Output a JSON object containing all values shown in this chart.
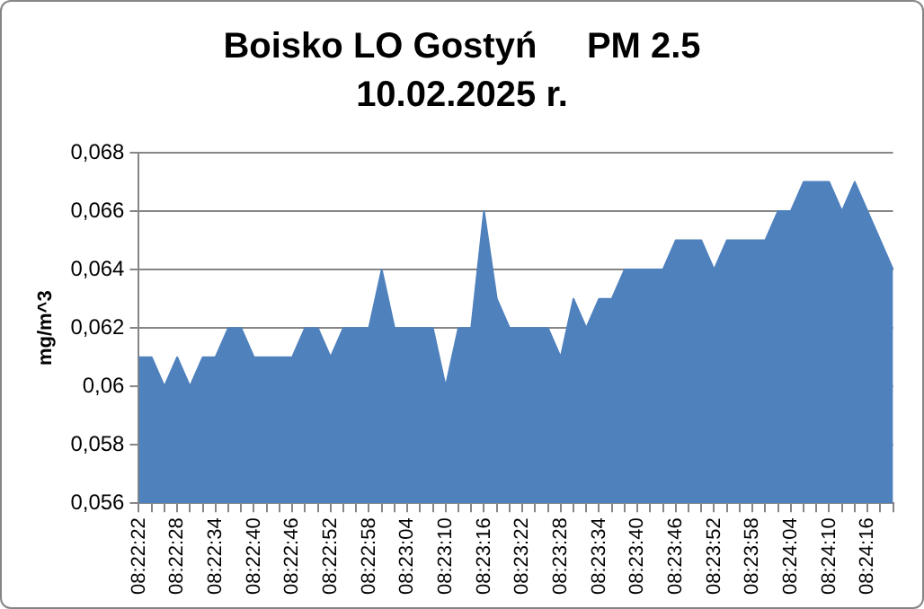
{
  "chart_data": {
    "type": "area",
    "title": "Boisko LO Gostyń     PM 2.5",
    "subtitle": "10.02.2025 r.",
    "ylabel": "mg/m^3",
    "categories": [
      "08:22:22",
      null,
      null,
      "08:22:28",
      null,
      null,
      "08:22:34",
      null,
      null,
      "08:22:40",
      null,
      null,
      "08:22:46",
      null,
      null,
      "08:22:52",
      null,
      null,
      "08:22:58",
      null,
      null,
      "08:23:04",
      null,
      null,
      "08:23:10",
      null,
      null,
      "08:23:16",
      null,
      null,
      "08:23:22",
      null,
      null,
      "08:23:28",
      null,
      null,
      "08:23:34",
      null,
      null,
      "08:23:40",
      null,
      null,
      "08:23:46",
      null,
      null,
      "08:23:52",
      null,
      null,
      "08:23:58",
      null,
      null,
      "08:24:04",
      null,
      null,
      "08:24:10",
      null,
      null,
      "08:24:16",
      null,
      null
    ],
    "values": [
      0.061,
      0.061,
      0.06,
      0.061,
      0.06,
      0.061,
      0.061,
      0.062,
      0.062,
      0.061,
      0.061,
      0.061,
      0.061,
      0.062,
      0.062,
      0.061,
      0.062,
      0.062,
      0.062,
      0.064,
      0.062,
      0.062,
      0.062,
      0.062,
      0.06,
      0.062,
      0.062,
      0.066,
      0.063,
      0.062,
      0.062,
      0.062,
      0.062,
      0.061,
      0.063,
      0.062,
      0.063,
      0.063,
      0.064,
      0.064,
      0.064,
      0.064,
      0.065,
      0.065,
      0.065,
      0.064,
      0.065,
      0.065,
      0.065,
      0.065,
      0.066,
      0.066,
      0.067,
      0.067,
      0.067,
      0.066,
      0.067,
      0.066,
      0.065,
      0.064
    ],
    "color": "#4f81bd",
    "ylim": [
      0.056,
      0.068
    ],
    "yticks": [
      {
        "value": 0.056,
        "label": "0,056"
      },
      {
        "value": 0.058,
        "label": "0,058"
      },
      {
        "value": 0.06,
        "label": "0,06"
      },
      {
        "value": 0.062,
        "label": "0,062"
      },
      {
        "value": 0.064,
        "label": "0,064"
      },
      {
        "value": 0.066,
        "label": "0,066"
      },
      {
        "value": 0.068,
        "label": "0,068"
      }
    ],
    "grid": "y",
    "legend": false,
    "marker": "none"
  }
}
